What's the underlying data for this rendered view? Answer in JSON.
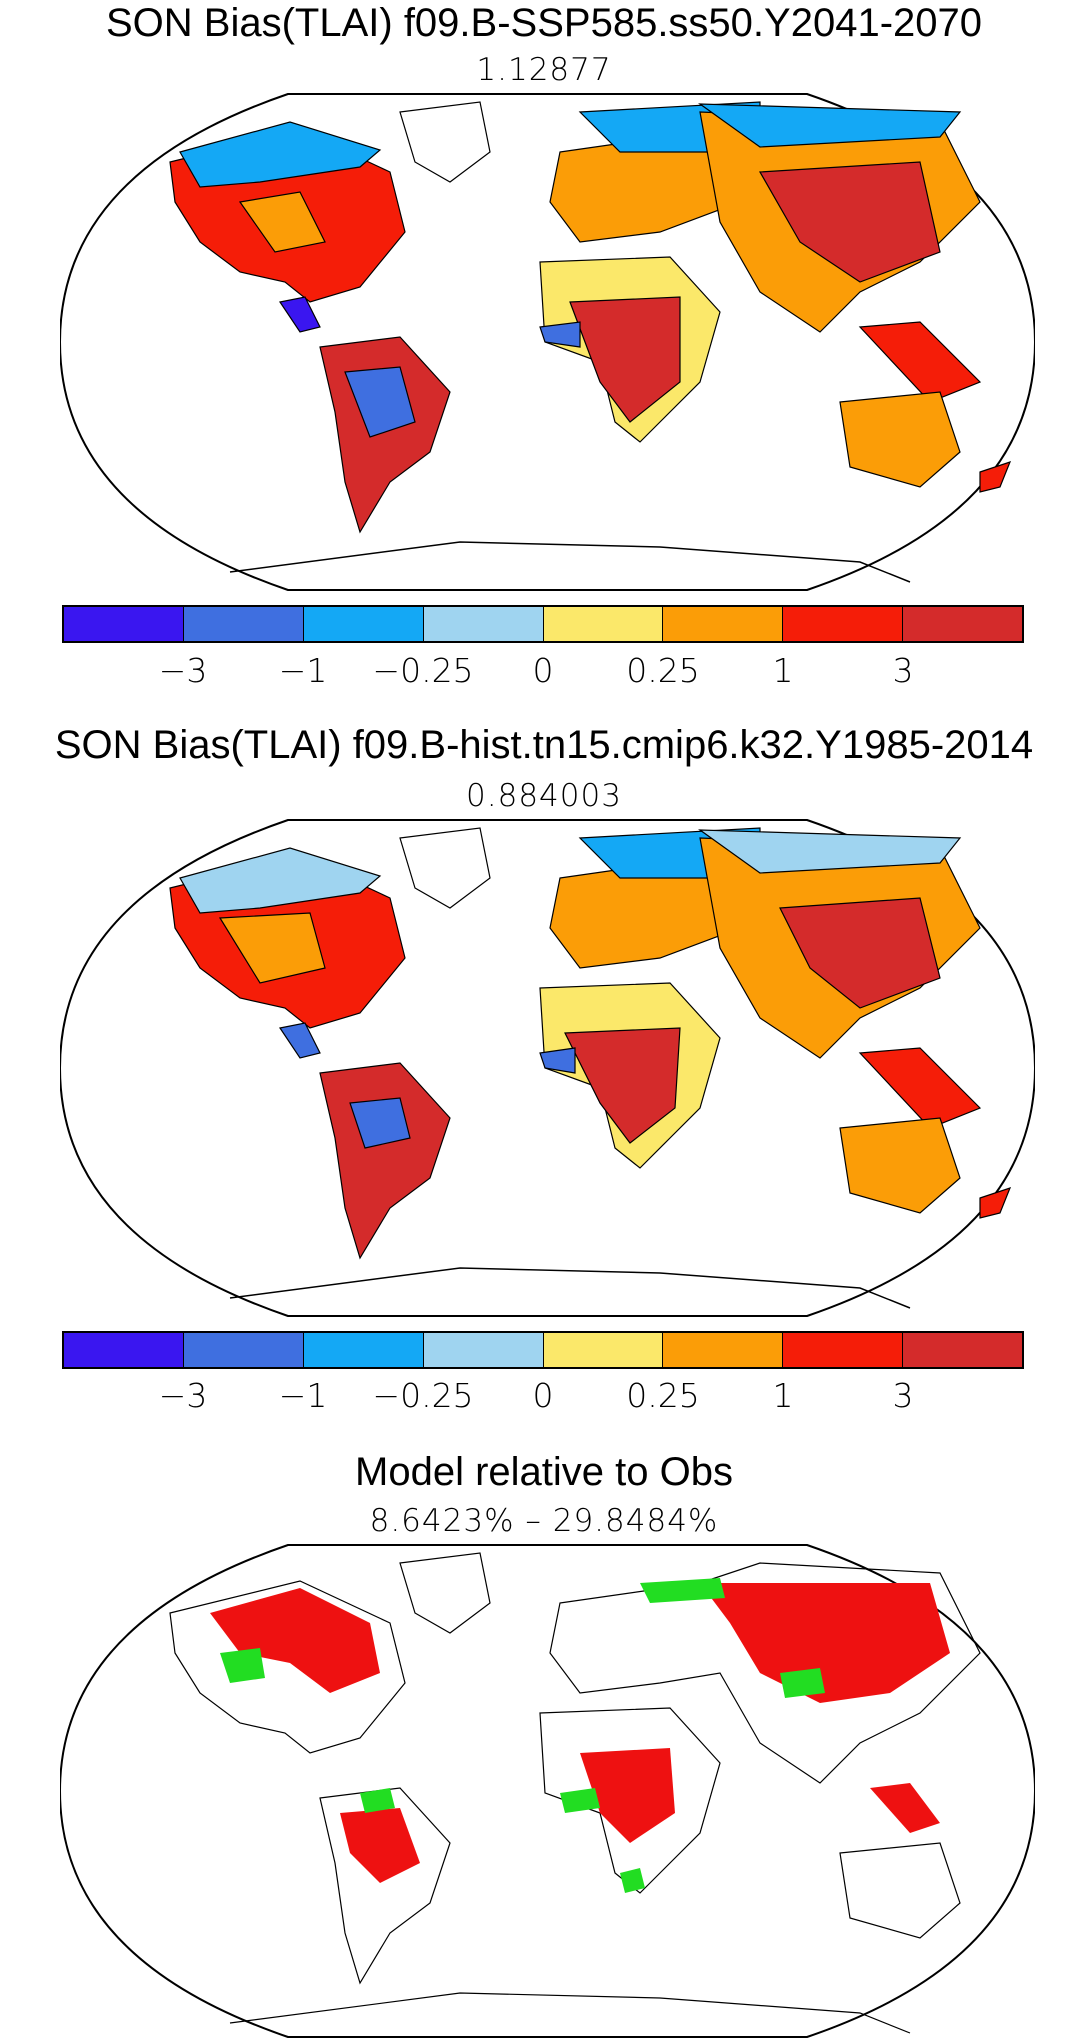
{
  "panels": [
    {
      "title": "SON Bias(TLAI) f09.B-SSP585.ss50.Y2041-2070",
      "subtitle": "1.12877"
    },
    {
      "title": "SON Bias(TLAI) f09.B-hist.tn15.cmip6.k32.Y1985-2014",
      "subtitle": "0.884003"
    },
    {
      "title": "Model relative to Obs",
      "subtitle": "8.6423% – 29.8484%"
    }
  ],
  "colorbar": {
    "colors": [
      "#3a16f0",
      "#3f6fe0",
      "#14a8f5",
      "#9fd4f0",
      "#fbe86a",
      "#fb9d07",
      "#f51d08",
      "#d42b2b"
    ],
    "tick_labels": [
      "−3",
      "−1",
      "−0.25",
      "0",
      "0.25",
      "1",
      "3"
    ]
  },
  "relative_colors": [
    "#ee1111",
    "#22dd22"
  ]
}
